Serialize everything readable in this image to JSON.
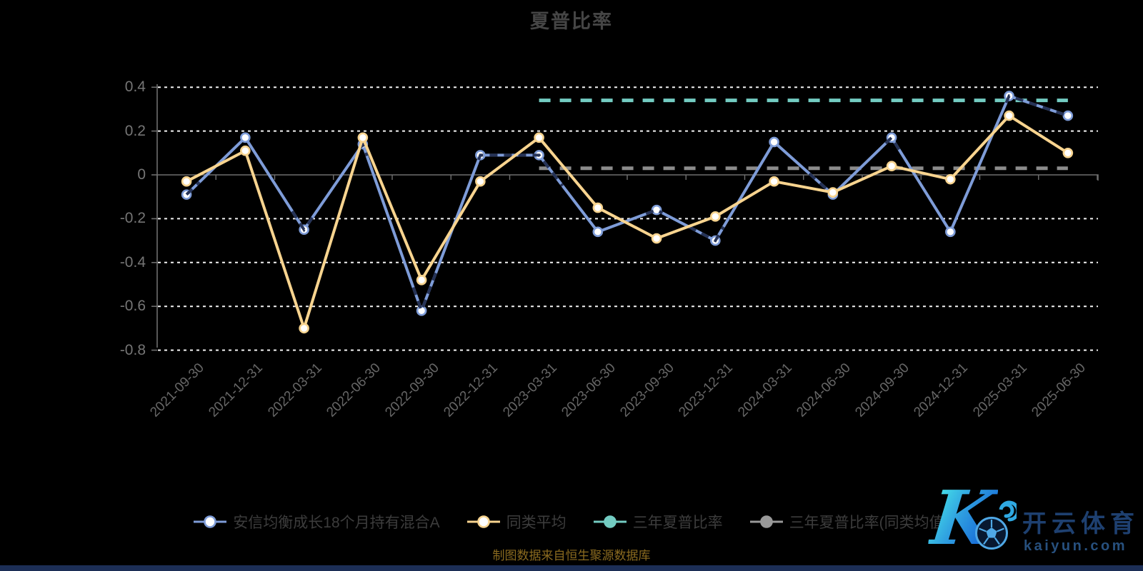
{
  "title": "夏普比率",
  "source_note": "制图数据来自恒生聚源数据库",
  "watermark": {
    "logo_letter": "K",
    "brand_cn": "开云体育",
    "brand_url": "kaiyun.com"
  },
  "legend": [
    {
      "label": "安信均衡成长18个月持有混合A",
      "color": "#7E9CD8",
      "marker": "hollow"
    },
    {
      "label": "同类平均",
      "color": "#F8D48F",
      "marker": "hollow"
    },
    {
      "label": "三年夏普比率",
      "color": "#73CCC2",
      "marker": "solid"
    },
    {
      "label": "三年夏普比率(同类均值)",
      "color": "#999999",
      "marker": "solid"
    }
  ],
  "chart_data": {
    "type": "line",
    "title": "夏普比率",
    "xlabel": "",
    "ylabel": "",
    "ylim": [
      -0.8,
      0.4
    ],
    "yticks": [
      0.4,
      0.2,
      0,
      -0.2,
      -0.4,
      -0.6,
      -0.8
    ],
    "grid": "horizontal-dashed-white",
    "legend_position": "bottom",
    "categories": [
      "2021-09-30",
      "2021-12-31",
      "2022-03-31",
      "2022-06-30",
      "2022-09-30",
      "2022-12-31",
      "2023-03-31",
      "2023-06-30",
      "2023-09-30",
      "2023-12-31",
      "2024-03-31",
      "2024-06-30",
      "2024-09-30",
      "2024-12-31",
      "2025-03-31",
      "2025-06-30"
    ],
    "series": [
      {
        "name": "安信均衡成长18个月持有混合A",
        "color": "#7E9CD8",
        "style": "solid",
        "marker": "hollow-circle",
        "values": [
          -0.09,
          0.17,
          -0.25,
          0.14,
          -0.62,
          0.09,
          0.09,
          -0.26,
          -0.16,
          -0.3,
          0.15,
          -0.09,
          0.17,
          -0.26,
          0.36,
          0.27
        ],
        "overlay": {
          "comment": "dark navy dashed highlight drawn over parts of this line",
          "color": "#263357",
          "spans": [
            [
              0,
              0.22
            ],
            [
              1.8,
              2.14
            ],
            [
              2.95,
              3.07
            ],
            [
              3.86,
              4.28
            ],
            [
              4.97,
              6.4
            ],
            [
              7.82,
              8.1
            ],
            [
              8.55,
              9.14
            ],
            [
              10.6,
              11.14
            ],
            [
              11.9,
              12.14
            ],
            [
              13.95,
              15
            ]
          ]
        }
      },
      {
        "name": "同类平均",
        "color": "#F8D48F",
        "style": "solid",
        "marker": "hollow-circle",
        "values": [
          -0.03,
          0.11,
          -0.7,
          0.17,
          -0.48,
          -0.03,
          0.17,
          -0.15,
          -0.29,
          -0.19,
          -0.03,
          -0.08,
          0.04,
          -0.02,
          0.27,
          0.1
        ]
      },
      {
        "name": "三年夏普比率",
        "color": "#73CCC2",
        "style": "dashed",
        "marker": "none",
        "values": [
          null,
          null,
          null,
          null,
          null,
          null,
          0.34,
          0.34,
          0.34,
          0.34,
          0.34,
          0.34,
          0.34,
          0.34,
          0.34,
          0.34
        ]
      },
      {
        "name": "三年夏普比率(同类均值)",
        "color": "#8C8C8C",
        "style": "dashed",
        "marker": "none",
        "values": [
          null,
          null,
          null,
          null,
          null,
          null,
          0.03,
          0.03,
          0.03,
          0.03,
          0.03,
          0.03,
          0.03,
          0.03,
          0.03,
          0.03
        ]
      }
    ]
  }
}
